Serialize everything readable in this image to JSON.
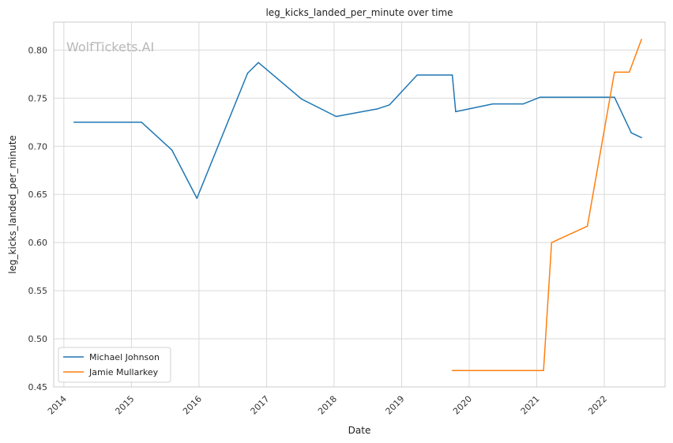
{
  "chart_data": {
    "type": "line",
    "title": "leg_kicks_landed_per_minute over time",
    "xlabel": "Date",
    "ylabel": "leg_kicks_landed_per_minute",
    "watermark": "WolfTickets.AI",
    "xlim": [
      2013.85,
      2022.9
    ],
    "ylim": [
      0.45,
      0.829
    ],
    "x_ticks": [
      2014,
      2015,
      2016,
      2017,
      2018,
      2019,
      2020,
      2021,
      2022
    ],
    "x_tick_labels": [
      "2014",
      "2015",
      "2016",
      "2017",
      "2018",
      "2019",
      "2020",
      "2021",
      "2022"
    ],
    "y_ticks": [
      0.45,
      0.5,
      0.55,
      0.6,
      0.65,
      0.7,
      0.75,
      0.8
    ],
    "y_tick_labels": [
      "0.45",
      "0.50",
      "0.55",
      "0.60",
      "0.65",
      "0.70",
      "0.75",
      "0.80"
    ],
    "grid": true,
    "legend_position": "bottom-left",
    "series": [
      {
        "name": "Michael Johnson",
        "color": "#1f77b4",
        "x": [
          2014.15,
          2015.15,
          2015.6,
          2015.97,
          2016.72,
          2016.88,
          2017.52,
          2018.03,
          2018.65,
          2018.82,
          2019.23,
          2019.75,
          2019.8,
          2020.35,
          2020.8,
          2021.05,
          2022.15,
          2022.4,
          2022.55
        ],
        "y": [
          0.725,
          0.725,
          0.696,
          0.646,
          0.776,
          0.787,
          0.749,
          0.731,
          0.739,
          0.743,
          0.774,
          0.774,
          0.736,
          0.744,
          0.744,
          0.751,
          0.751,
          0.714,
          0.709
        ]
      },
      {
        "name": "Jamie Mullarkey",
        "color": "#ff7f0e",
        "x": [
          2019.75,
          2021.1,
          2021.22,
          2021.75,
          2022.15,
          2022.37,
          2022.55
        ],
        "y": [
          0.467,
          0.467,
          0.6,
          0.617,
          0.777,
          0.777,
          0.811
        ]
      }
    ]
  }
}
